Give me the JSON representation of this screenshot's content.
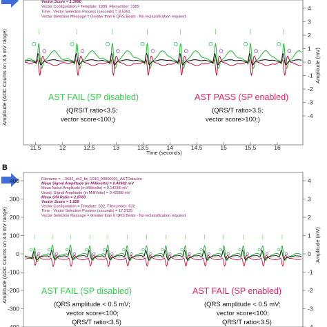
{
  "colors": {
    "green_trace": "#2fbf3a",
    "red_trace": "#c0143c",
    "black_trace": "#111111",
    "green_text": "#33d14a",
    "pink_text": "#e8245f",
    "info_text": "#8b1a6b",
    "arrow": "#3f6fd6",
    "marker_green": "#3dd06a",
    "marker_purple": "#9b5cc9"
  },
  "chart_data": [
    {
      "panel": "",
      "type": "line",
      "xlabel": "Time (seconds)",
      "ylabel_left": "Amplitude (ADC Counts on 3.6 mV range)",
      "ylabel_right": "Amplitude (mV)",
      "x_range": [
        11.3,
        16.45
      ],
      "x_ticks": [
        "11.5",
        "12",
        "12.5",
        "13",
        "13.5",
        "14",
        "14.5",
        "15",
        "15.5",
        "16"
      ],
      "right_ticks": [
        "4",
        "3",
        "2",
        "1",
        "0",
        "-1",
        "-2",
        "-3",
        "-4"
      ],
      "beats_x": [
        11.56,
        12.27,
        12.93,
        13.58,
        14.2,
        14.85,
        15.5,
        16.12
      ],
      "info_lines": [
        {
          "text": "Vector Score  = 1.3990",
          "bold": true
        },
        {
          "text": "Vector Configuration                     = Template: 1989, Filenumber: 1989",
          "bold": false
        },
        {
          "text": "Time - Vector Selection Process (seconds) = 8.5391",
          "bold": false
        },
        {
          "text": "Vector Selection Message                 = Greater than 6 QRS Beats - No reclassification required",
          "bold": false
        }
      ],
      "left_result": {
        "title": "AST FAIL (SP disabled)",
        "lines": [
          "(QRS/T ratio<3.5;",
          "vector score<100;)"
        ]
      },
      "right_result": {
        "title": "AST PASS (SP enabled)",
        "lines": [
          "(QRS/T ratio>3.5;",
          "vector score>100;)"
        ]
      }
    },
    {
      "panel": "B",
      "type": "line",
      "xlabel": "",
      "ylabel_left": "Amplitude (ADC Counts on 3.6 mV range)",
      "ylabel_right": "Amplitude (mV)",
      "left_ticks": [
        "400",
        "300",
        "200",
        "100",
        "0",
        "-100",
        "-200",
        "-300",
        "-400"
      ],
      "right_ticks": [
        "4",
        "3",
        "2",
        "1",
        "0",
        "-1",
        "-2",
        "-3",
        "-4"
      ],
      "beats_x": [
        0.035,
        0.1,
        0.165,
        0.235,
        0.3,
        0.37,
        0.44,
        0.51,
        0.58,
        0.65,
        0.72,
        0.79,
        0.86,
        0.93
      ],
      "info_lines": [
        {
          "text": "Filename                              = ...0632_ch2_fix..1016_00000001_ASTData.bin",
          "bold": false
        },
        {
          "text": "Mean Signal Amplitude (in Millivolts)  = 0.40902 mV",
          "bold": true
        },
        {
          "text": "Mean Noise Amplitude (in Millivolts)   = 0.14238 mV",
          "bold": false
        },
        {
          "text": "Unadj. Signal Amplitude (in MilliVolts) = 0.42288 mV",
          "bold": false
        },
        {
          "text": "Mean S/N Ratio                        = 2.8783",
          "bold": true
        },
        {
          "text": "Vector Score                          = 1.828",
          "bold": true
        },
        {
          "text": "Vector Configuration                  = Template: 632, Filenumber: 632",
          "bold": false
        },
        {
          "text": "Time - Vector Selection Process (seconds) = 17.3125",
          "bold": false
        },
        {
          "text": "Vector Selection Message              = Greater than 6 QRS Beats - No reclassification required",
          "bold": false
        }
      ],
      "left_result": {
        "title": "AST FAIL (SP disabled)",
        "lines": [
          "(QRS amplitude < 0.5 mV;",
          "vector score<100;",
          "QRS/T ratio<3.5)"
        ]
      },
      "right_result": {
        "title": "AST FAIL (SP enabled)",
        "lines": [
          "(QRS amplitude < 0.5 mV;",
          "vector score<100;",
          "QRS/T ratio<3.5)"
        ]
      }
    }
  ]
}
